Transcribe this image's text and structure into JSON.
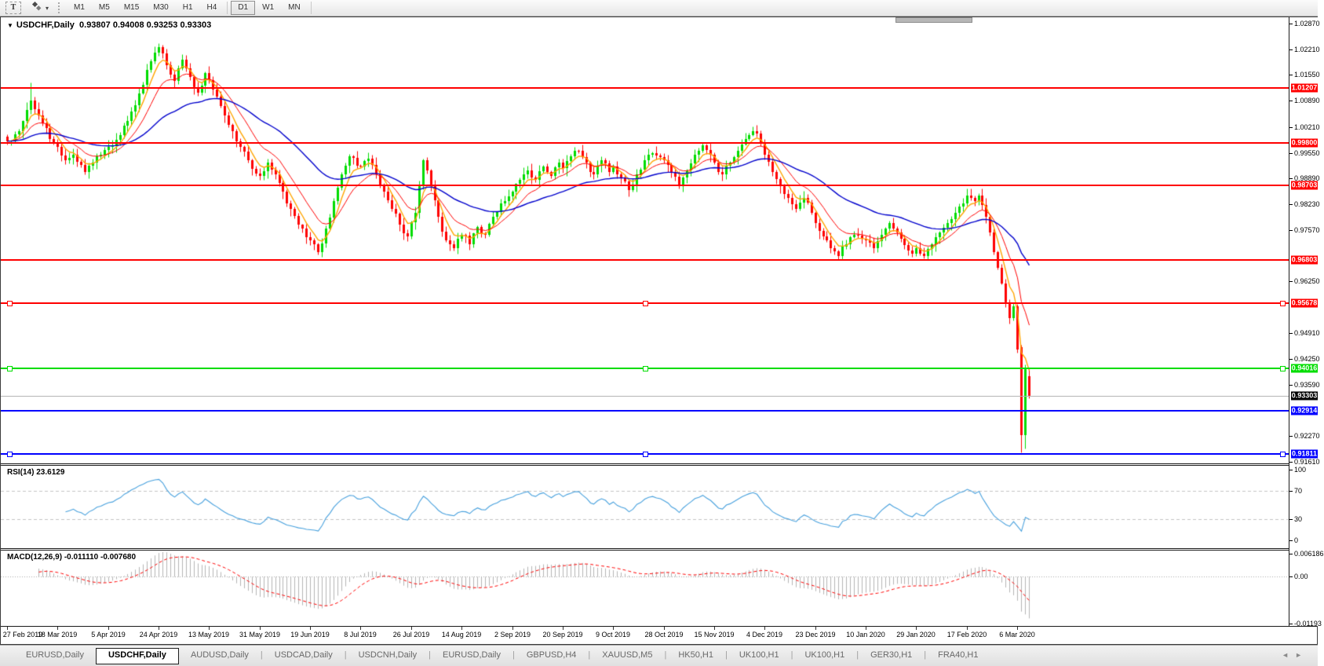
{
  "toolbar": {
    "text_tool_label": "T",
    "timeframes": [
      "M1",
      "M5",
      "M15",
      "M30",
      "H1",
      "H4",
      "D1",
      "W1",
      "MN"
    ],
    "active_timeframe": "D1",
    "group_break_after": "H4"
  },
  "chart": {
    "title": "USDCHF,Daily",
    "ohlc_text": "0.93807 0.94008 0.93253 0.93303",
    "dropdown_glyph": "▼",
    "price_axis_ticks": [
      "1.02870",
      "1.02210",
      "1.01550",
      "1.00890",
      "1.00210",
      "0.99550",
      "0.98890",
      "0.98230",
      "0.97570",
      "0.96250",
      "0.94910",
      "0.94250",
      "0.93590",
      "0.92270",
      "0.91610"
    ],
    "date_axis": [
      "27 Feb 2019",
      "18 Mar 2019",
      "5 Apr 2019",
      "24 Apr 2019",
      "13 May 2019",
      "31 May 2019",
      "19 Jun 2019",
      "8 Jul 2019",
      "26 Jul 2019",
      "14 Aug 2019",
      "2 Sep 2019",
      "20 Sep 2019",
      "9 Oct 2019",
      "28 Oct 2019",
      "15 Nov 2019",
      "4 Dec 2019",
      "23 Dec 2019",
      "10 Jan 2020",
      "29 Jan 2020",
      "17 Feb 2020",
      "6 Mar 2020"
    ],
    "levels": [
      {
        "price": 1.01207,
        "label": "1.01207",
        "color": "#ff0000",
        "thickness": 2,
        "handles": false
      },
      {
        "price": 0.998,
        "label": "0.99800",
        "color": "#ff0000",
        "thickness": 2,
        "handles": false
      },
      {
        "price": 0.98703,
        "label": "0.98703",
        "color": "#ff0000",
        "thickness": 2,
        "handles": false
      },
      {
        "price": 0.96803,
        "label": "0.96803",
        "color": "#ff0000",
        "thickness": 2,
        "handles": false
      },
      {
        "price": 0.95678,
        "label": "0.95678",
        "color": "#ff0000",
        "thickness": 2,
        "handles": true
      },
      {
        "price": 0.94016,
        "label": "0.94016",
        "color": "#00dd00",
        "thickness": 2,
        "handles": true
      },
      {
        "price": 0.92914,
        "label": "0.92914",
        "color": "#0000ff",
        "thickness": 2,
        "handles": false
      },
      {
        "price": 0.91811,
        "label": "0.91811",
        "color": "#0000ff",
        "thickness": 2,
        "handles": true
      }
    ],
    "current_price": {
      "price": 0.93303,
      "label": "0.93303",
      "line_color": "#b4b4b4",
      "chip_bg": "#000000",
      "chip_fg": "#ffffff"
    }
  },
  "rsi": {
    "label": "RSI(14)",
    "value": "23.6129",
    "scale_ticks": [
      {
        "t": "100",
        "v": 100
      },
      {
        "t": "70",
        "v": 70
      },
      {
        "t": "30",
        "v": 30
      },
      {
        "t": "0",
        "v": 0
      }
    ],
    "dashed_levels": [
      70,
      30
    ],
    "line_color": "#47a0dd",
    "dash_color": "#c3c3c3"
  },
  "macd": {
    "label": "MACD(12,26,9)",
    "value_main": "-0.011110",
    "value_signal": "-0.007680",
    "scale_ticks": [
      {
        "t": "0.006186",
        "v": 0.006186
      },
      {
        "t": "0.00",
        "v": 0
      },
      {
        "t": "-0.01193",
        "v": -0.01193
      }
    ],
    "hist_color": "#b5b5b5",
    "signal_color": "#ff0000",
    "zero_dot_color": "#a8a8a8"
  },
  "tabs": [
    {
      "label": "EURUSD,Daily",
      "active": false
    },
    {
      "label": "USDCHF,Daily",
      "active": true
    },
    {
      "label": "AUDUSD,Daily",
      "active": false
    },
    {
      "label": "USDCAD,Daily",
      "active": false
    },
    {
      "label": "USDCNH,Daily",
      "active": false
    },
    {
      "label": "EURUSD,Daily",
      "active": false
    },
    {
      "label": "GBPUSD,H4",
      "active": false
    },
    {
      "label": "XAUUSD,M5",
      "active": false
    },
    {
      "label": "HK50,H1",
      "active": false
    },
    {
      "label": "UK100,H1",
      "active": false
    },
    {
      "label": "UK100,H1",
      "active": false
    },
    {
      "label": "GER30,H1",
      "active": false
    },
    {
      "label": "FRA40,H1",
      "active": false
    }
  ],
  "tab_arrows": {
    "left": "◄",
    "right": "►"
  },
  "chart_data": {
    "type": "candlestick+indicators",
    "symbol": "USDCHF",
    "period": "Daily",
    "current_bar": {
      "open": 0.93807,
      "high": 0.94008,
      "low": 0.93253,
      "close": 0.93303
    },
    "candles": {
      "count": 264,
      "close_anchors": [
        [
          0,
          0.9985
        ],
        [
          3,
          1.001
        ],
        [
          6,
          1.009
        ],
        [
          9,
          1.003
        ],
        [
          12,
          0.998
        ],
        [
          15,
          0.9935
        ],
        [
          17,
          0.995
        ],
        [
          20,
          0.9905
        ],
        [
          23,
          0.9945
        ],
        [
          26,
          0.997
        ],
        [
          29,
          1.0
        ],
        [
          32,
          1.006
        ],
        [
          35,
          1.013
        ],
        [
          37,
          1.019
        ],
        [
          39,
          1.0226
        ],
        [
          41,
          1.018
        ],
        [
          43,
          1.014
        ],
        [
          45,
          1.0195
        ],
        [
          47,
          1.015
        ],
        [
          49,
          1.011
        ],
        [
          51,
          1.016
        ],
        [
          54,
          1.01
        ],
        [
          56,
          1.005
        ],
        [
          58,
          1.001
        ],
        [
          60,
          0.997
        ],
        [
          62,
          0.9935
        ],
        [
          65,
          0.9895
        ],
        [
          67,
          0.993
        ],
        [
          69,
          0.99
        ],
        [
          71,
          0.9855
        ],
        [
          73,
          0.981
        ],
        [
          75,
          0.977
        ],
        [
          78,
          0.973
        ],
        [
          80,
          0.97
        ],
        [
          82,
          0.976
        ],
        [
          84,
          0.983
        ],
        [
          86,
          0.99
        ],
        [
          88,
          0.9945
        ],
        [
          91,
          0.992
        ],
        [
          93,
          0.994
        ],
        [
          95,
          0.99
        ],
        [
          97,
          0.9855
        ],
        [
          99,
          0.981
        ],
        [
          101,
          0.977
        ],
        [
          103,
          0.974
        ],
        [
          105,
          0.98
        ],
        [
          107,
          0.9935
        ],
        [
          109,
          0.987
        ],
        [
          111,
          0.979
        ],
        [
          113,
          0.973
        ],
        [
          115,
          0.971
        ],
        [
          117,
          0.9745
        ],
        [
          119,
          0.972
        ],
        [
          121,
          0.9765
        ],
        [
          123,
          0.9745
        ],
        [
          125,
          0.979
        ],
        [
          127,
          0.9825
        ],
        [
          130,
          0.9855
        ],
        [
          132,
          0.9885
        ],
        [
          134,
          0.991
        ],
        [
          136,
          0.9885
        ],
        [
          138,
          0.992
        ],
        [
          140,
          0.9895
        ],
        [
          142,
          0.993
        ],
        [
          143,
          0.9915
        ],
        [
          145,
          0.9945
        ],
        [
          147,
          0.996
        ],
        [
          149,
          0.993
        ],
        [
          151,
          0.99
        ],
        [
          153,
          0.9935
        ],
        [
          155,
          0.9905
        ],
        [
          156,
          0.992
        ],
        [
          158,
          0.989
        ],
        [
          160,
          0.986
        ],
        [
          162,
          0.99
        ],
        [
          164,
          0.9935
        ],
        [
          166,
          0.9955
        ],
        [
          169,
          0.9935
        ],
        [
          171,
          0.9905
        ],
        [
          173,
          0.987
        ],
        [
          175,
          0.991
        ],
        [
          177,
          0.995
        ],
        [
          179,
          0.9975
        ],
        [
          181,
          0.995
        ],
        [
          182,
          0.993
        ],
        [
          184,
          0.99
        ],
        [
          186,
          0.993
        ],
        [
          188,
          0.996
        ],
        [
          190,
          0.999
        ],
        [
          192,
          1.001
        ],
        [
          194,
          0.998
        ],
        [
          195,
          0.995
        ],
        [
          197,
          0.9905
        ],
        [
          199,
          0.987
        ],
        [
          201,
          0.984
        ],
        [
          203,
          0.981
        ],
        [
          205,
          0.984
        ],
        [
          207,
          0.98
        ],
        [
          208,
          0.9775
        ],
        [
          210,
          0.974
        ],
        [
          212,
          0.971
        ],
        [
          214,
          0.969
        ],
        [
          216,
          0.972
        ],
        [
          218,
          0.9745
        ],
        [
          221,
          0.973
        ],
        [
          223,
          0.971
        ],
        [
          225,
          0.9745
        ],
        [
          227,
          0.9775
        ],
        [
          229,
          0.975
        ],
        [
          231,
          0.9718
        ],
        [
          233,
          0.9695
        ],
        [
          234,
          0.971
        ],
        [
          236,
          0.969
        ],
        [
          238,
          0.972
        ],
        [
          240,
          0.975
        ],
        [
          242,
          0.9775
        ],
        [
          244,
          0.98
        ],
        [
          246,
          0.9825
        ],
        [
          247,
          0.9845
        ],
        [
          249,
          0.983
        ],
        [
          250,
          0.9846
        ],
        [
          252,
          0.979
        ],
        [
          253,
          0.975
        ],
        [
          254,
          0.97
        ],
        [
          255,
          0.966
        ],
        [
          256,
          0.962
        ],
        [
          257,
          0.957
        ],
        [
          258,
          0.953
        ],
        [
          259,
          0.956
        ],
        [
          260,
          0.945
        ],
        [
          261,
          0.923
        ],
        [
          262,
          0.94
        ],
        [
          263,
          0.93303
        ]
      ],
      "overrides": {
        "6": {
          "h": 1.0135
        },
        "39": {
          "h": 1.0237
        },
        "80": {
          "l": 0.9693
        },
        "192": {
          "h": 1.0023
        },
        "214": {
          "l": 0.968
        },
        "261": {
          "o": 0.9455,
          "h": 0.9462,
          "l": 0.9186,
          "c": 0.923
        },
        "262": {
          "o": 0.923,
          "h": 0.9412,
          "l": 0.9196,
          "c": 0.94
        },
        "263": {
          "o": 0.93807,
          "h": 0.94008,
          "l": 0.93253,
          "c": 0.93303
        }
      }
    },
    "moving_averages": [
      {
        "name": "ma-fast",
        "period": 5,
        "color": "#ffa500",
        "width": 1.4
      },
      {
        "name": "ma-mid",
        "period": 12,
        "color": "#ff0000",
        "width": 1.0
      },
      {
        "name": "ma-slow",
        "period": 40,
        "color": "#0000cc",
        "width": 1.4
      }
    ],
    "colors": {
      "up": "#00dc00",
      "down": "#ff0000"
    }
  }
}
